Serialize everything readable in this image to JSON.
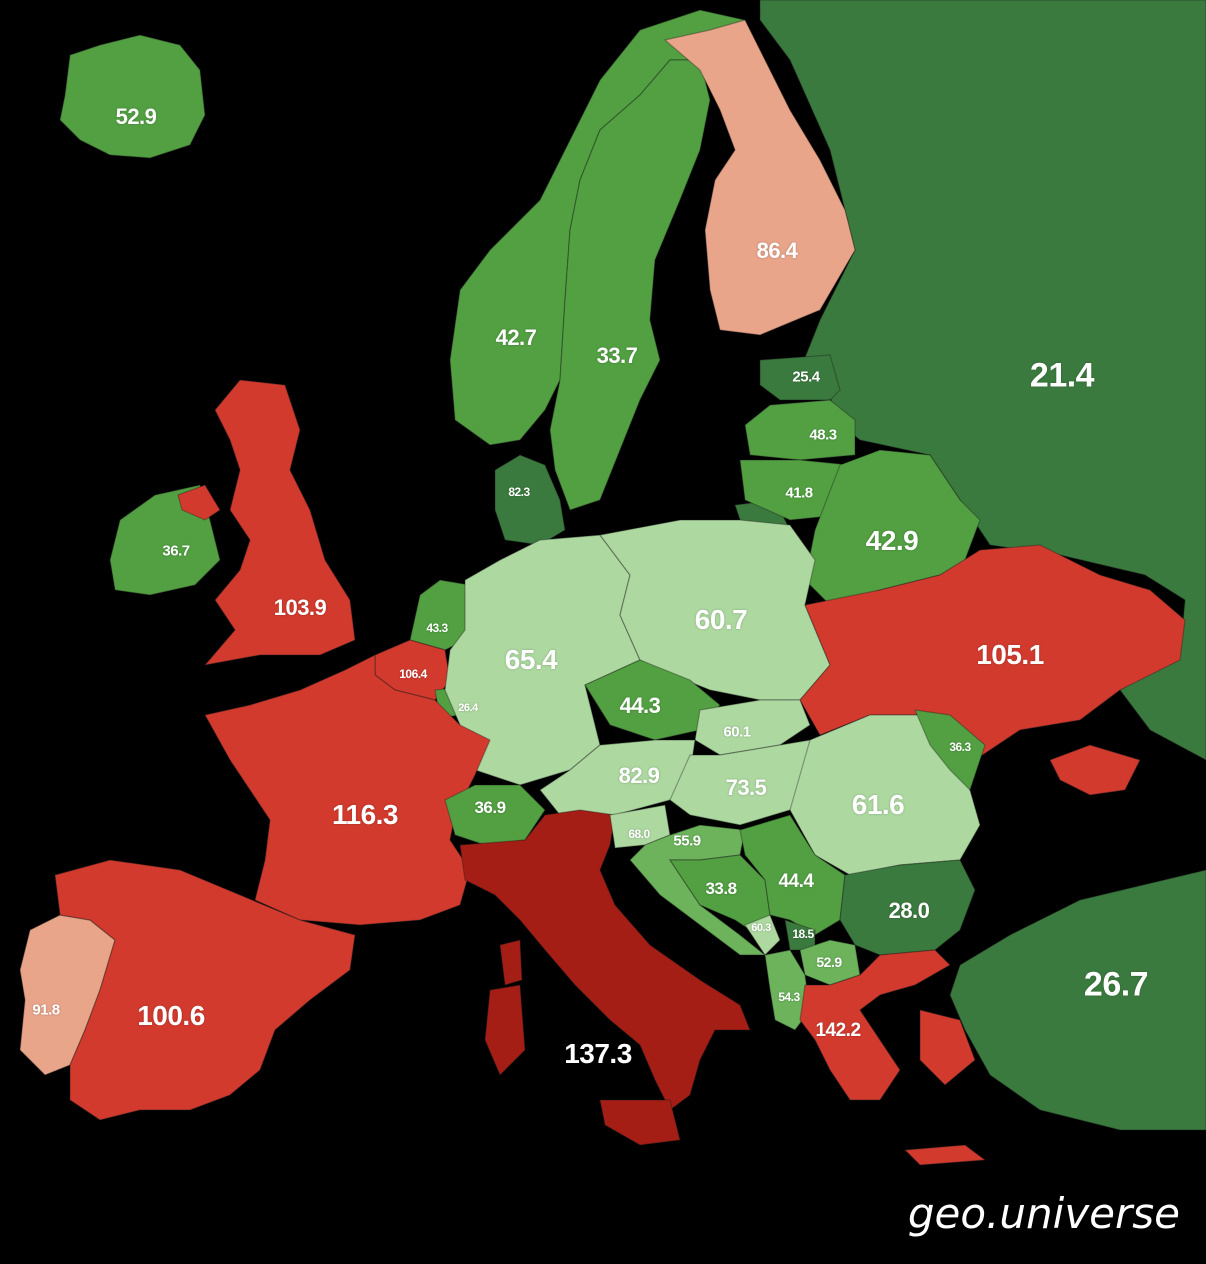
{
  "colors": {
    "background": "#000000",
    "dark_green": "#3b7a3e",
    "green": "#52a042",
    "mid_green": "#6cb35c",
    "light_green": "#add8a0",
    "pale_salmon": "#e8a58a",
    "red": "#d23a2e",
    "dark_red": "#a51e16"
  },
  "regions": [
    {
      "name": "Iceland",
      "value": "52.9",
      "fill": "#52a042"
    },
    {
      "name": "Norway",
      "value": "42.7",
      "fill": "#52a042"
    },
    {
      "name": "Sweden",
      "value": "33.7",
      "fill": "#52a042"
    },
    {
      "name": "Finland",
      "value": "86.4",
      "fill": "#e8a58a"
    },
    {
      "name": "Russia",
      "value": "21.4",
      "fill": "#3b7a3e"
    },
    {
      "name": "Estonia",
      "value": "25.4",
      "fill": "#3b7a3e"
    },
    {
      "name": "Latvia",
      "value": "48.3",
      "fill": "#52a042"
    },
    {
      "name": "Lithuania",
      "value": "41.8",
      "fill": "#52a042"
    },
    {
      "name": "Belarus",
      "value": "42.9",
      "fill": "#52a042"
    },
    {
      "name": "Denmark",
      "value": "82.3",
      "fill": "#3b7a3e"
    },
    {
      "name": "Ireland",
      "value": "36.7",
      "fill": "#52a042"
    },
    {
      "name": "United Kingdom",
      "value": "103.9",
      "fill": "#d23a2e"
    },
    {
      "name": "Netherlands",
      "value": "43.3",
      "fill": "#52a042"
    },
    {
      "name": "Belgium",
      "value": "106.4",
      "fill": "#d23a2e"
    },
    {
      "name": "Luxembourg",
      "value": "26.4",
      "fill": "#52a042"
    },
    {
      "name": "Germany",
      "value": "65.4",
      "fill": "#add8a0"
    },
    {
      "name": "Poland",
      "value": "60.7",
      "fill": "#add8a0"
    },
    {
      "name": "Ukraine",
      "value": "105.1",
      "fill": "#d23a2e"
    },
    {
      "name": "Czechia",
      "value": "44.3",
      "fill": "#52a042"
    },
    {
      "name": "Slovakia",
      "value": "60.1",
      "fill": "#add8a0"
    },
    {
      "name": "Austria",
      "value": "82.9",
      "fill": "#add8a0"
    },
    {
      "name": "Hungary",
      "value": "73.5",
      "fill": "#add8a0"
    },
    {
      "name": "Romania",
      "value": "61.6",
      "fill": "#add8a0"
    },
    {
      "name": "Moldova",
      "value": "36.3",
      "fill": "#52a042"
    },
    {
      "name": "France",
      "value": "116.3",
      "fill": "#d23a2e"
    },
    {
      "name": "Switzerland",
      "value": "36.9",
      "fill": "#52a042"
    },
    {
      "name": "Italy",
      "value": "137.3",
      "fill": "#a51e16"
    },
    {
      "name": "Slovenia",
      "value": "68.0",
      "fill": "#add8a0"
    },
    {
      "name": "Croatia",
      "value": "55.9",
      "fill": "#6cb35c"
    },
    {
      "name": "Bosnia and Herzegovina",
      "value": "33.8",
      "fill": "#52a042"
    },
    {
      "name": "Serbia",
      "value": "44.4",
      "fill": "#52a042"
    },
    {
      "name": "Montenegro",
      "value": "60.3",
      "fill": "#add8a0"
    },
    {
      "name": "Kosovo",
      "value": "18.5",
      "fill": "#3b7a3e"
    },
    {
      "name": "North Macedonia",
      "value": "52.9",
      "fill": "#6cb35c"
    },
    {
      "name": "Albania",
      "value": "54.3",
      "fill": "#6cb35c"
    },
    {
      "name": "Bulgaria",
      "value": "28.0",
      "fill": "#3b7a3e"
    },
    {
      "name": "Greece",
      "value": "142.2",
      "fill": "#d23a2e"
    },
    {
      "name": "Turkey",
      "value": "26.7",
      "fill": "#3b7a3e"
    },
    {
      "name": "Portugal",
      "value": "91.8",
      "fill": "#e8a58a"
    },
    {
      "name": "Spain",
      "value": "100.6",
      "fill": "#d23a2e"
    }
  ],
  "watermark": "geo.universe"
}
